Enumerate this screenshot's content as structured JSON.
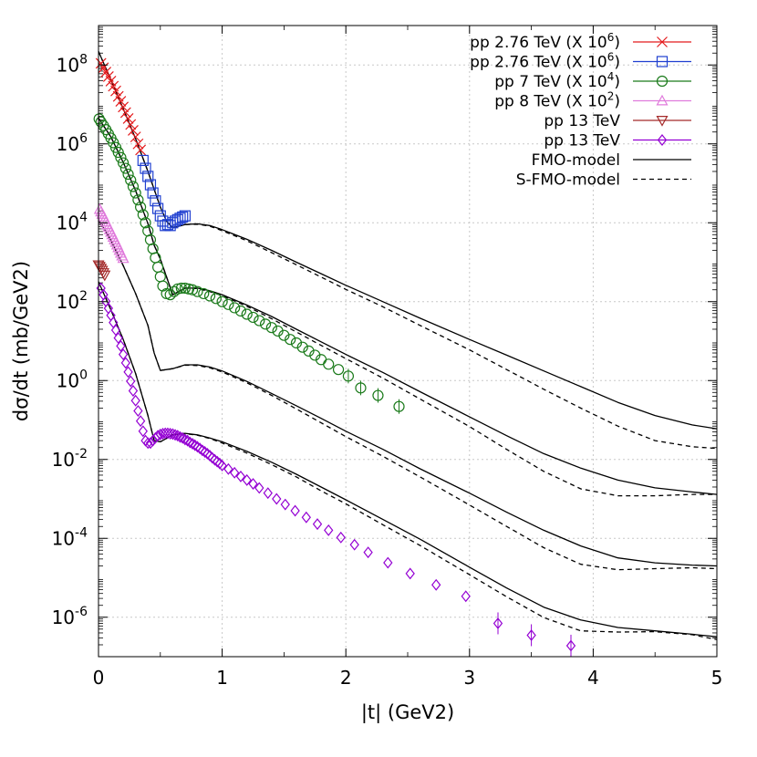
{
  "chart_data": {
    "type": "scatter",
    "xlabel": "|t| (GeV2)",
    "ylabel": "dσ/dt (mb/GeV2)",
    "x_scale": "linear",
    "y_scale": "log",
    "xlim": [
      0,
      5
    ],
    "ylim": [
      1e-07,
      1000000000.0
    ],
    "x_ticks": [
      "0",
      "1",
      "2",
      "3",
      "4",
      "5"
    ],
    "y_ticks": [
      {
        "base": "10",
        "exp": "8",
        "value": 100000000.0
      },
      {
        "base": "10",
        "exp": "6",
        "value": 1000000.0
      },
      {
        "base": "10",
        "exp": "4",
        "value": 10000.0
      },
      {
        "base": "10",
        "exp": "2",
        "value": 100.0
      },
      {
        "base": "10",
        "exp": "0",
        "value": 1
      },
      {
        "base": "10",
        "exp": "-2",
        "value": 0.01
      },
      {
        "base": "10",
        "exp": "-4",
        "value": 0.0001
      },
      {
        "base": "10",
        "exp": "-6",
        "value": 1e-06
      }
    ],
    "grid": true,
    "legend_position": "top-right",
    "series": [
      {
        "name": "pp 2.76 TeV (X 10⁶)",
        "marker": "x",
        "color": "#e41a1c",
        "line": "solid",
        "x": [
          0.02,
          0.04,
          0.06,
          0.08,
          0.1,
          0.12,
          0.14,
          0.16,
          0.18,
          0.2,
          0.22,
          0.24,
          0.26,
          0.28,
          0.3,
          0.32,
          0.34
        ],
        "y": [
          110000000.0,
          85000000.0,
          66000000.0,
          51000000.0,
          39000000.0,
          29000000.0,
          22000000.0,
          16000000.0,
          12000000.0,
          8600000.0,
          6200000.0,
          4400000.0,
          3100000.0,
          2200000.0,
          1500000.0,
          1000000.0,
          700000.0
        ]
      },
      {
        "name": "pp 2.76 TeV (X 10⁶)",
        "marker": "square",
        "color": "#1f3fd0",
        "line": "solid",
        "x": [
          0.36,
          0.38,
          0.4,
          0.42,
          0.44,
          0.46,
          0.48,
          0.5,
          0.52,
          0.54,
          0.56,
          0.58,
          0.6,
          0.62,
          0.64,
          0.66,
          0.68,
          0.7
        ],
        "y": [
          380000.0,
          240000.0,
          150000.0,
          92000.0,
          57000.0,
          36000.0,
          23000.0,
          15000.0,
          11000.0,
          8500.0,
          9000.0,
          8500.0,
          10000.0,
          11000.0,
          12000.0,
          13000.0,
          14000.0,
          15000.0
        ]
      },
      {
        "name": "pp 7 TeV (X 10⁴)",
        "marker": "circle",
        "color": "#1a7a1a",
        "line": "solid",
        "x": [
          0.005,
          0.02,
          0.04,
          0.06,
          0.08,
          0.1,
          0.12,
          0.14,
          0.16,
          0.18,
          0.2,
          0.22,
          0.24,
          0.26,
          0.28,
          0.3,
          0.32,
          0.34,
          0.36,
          0.38,
          0.4,
          0.42,
          0.44,
          0.46,
          0.48,
          0.5,
          0.52,
          0.55,
          0.58,
          0.61,
          0.64,
          0.67,
          0.7,
          0.73,
          0.76,
          0.8,
          0.85,
          0.9,
          0.95,
          1.0,
          1.05,
          1.1,
          1.15,
          1.2,
          1.25,
          1.3,
          1.35,
          1.4,
          1.45,
          1.5,
          1.55,
          1.6,
          1.65,
          1.7,
          1.75,
          1.8,
          1.86,
          1.94,
          2.02,
          2.12,
          2.26,
          2.43
        ],
        "y": [
          4300000.0,
          3600000.0,
          2900000.0,
          2300000.0,
          1800000.0,
          1400000.0,
          1070000.0,
          810000.0,
          610000.0,
          450000.0,
          330000.0,
          240000.0,
          170000.0,
          120000.0,
          83000.0,
          57000.0,
          38000.0,
          25000.0,
          16000.0,
          10000.0,
          6200.0,
          3700.0,
          2200.0,
          1300.0,
          750.0,
          430.0,
          250.0,
          160.0,
          150.0,
          180.0,
          210.0,
          220.0,
          220.0,
          210.0,
          200.0,
          180.0,
          160.0,
          140.0,
          120.0,
          100.0,
          85,
          70,
          58,
          48,
          40,
          33,
          27,
          22,
          18,
          14,
          11,
          9,
          7,
          5.6,
          4.4,
          3.4,
          2.6,
          1.9,
          1.3,
          0.65,
          0.42,
          0.22
        ]
      },
      {
        "name": "pp 8 TeV (X 10²)",
        "marker": "triangle-up",
        "color": "#e07bdc",
        "line": "solid",
        "x": [
          0.01,
          0.02,
          0.03,
          0.04,
          0.05,
          0.06,
          0.07,
          0.08,
          0.09,
          0.1,
          0.11,
          0.12,
          0.13,
          0.14,
          0.15,
          0.16,
          0.17,
          0.18,
          0.19,
          0.2
        ],
        "y": [
          22000.0,
          19000.0,
          16500.0,
          14200.0,
          12200.0,
          10500.0,
          9000.0,
          7800.0,
          6700.0,
          5800.0,
          5000.0,
          4300.0,
          3700.0,
          3200.0,
          2750.0,
          2350.0,
          2000.0,
          1700.0,
          1450.0,
          1250.0
        ]
      },
      {
        "name": "pp 13 TeV",
        "marker": "triangle-down",
        "color": "#a52a2a",
        "line": "solid",
        "x": [
          0.0,
          0.01,
          0.02,
          0.03,
          0.04,
          0.05
        ],
        "y": [
          850,
          780,
          700,
          620,
          540,
          470
        ]
      },
      {
        "name": "pp 13 TeV",
        "marker": "diamond",
        "color": "#9400d3",
        "line": "solid",
        "x": [
          0.02,
          0.04,
          0.06,
          0.08,
          0.1,
          0.12,
          0.14,
          0.16,
          0.18,
          0.2,
          0.22,
          0.24,
          0.26,
          0.28,
          0.3,
          0.32,
          0.34,
          0.36,
          0.38,
          0.4,
          0.42,
          0.44,
          0.46,
          0.48,
          0.5,
          0.52,
          0.54,
          0.56,
          0.58,
          0.6,
          0.62,
          0.64,
          0.66,
          0.68,
          0.7,
          0.72,
          0.74,
          0.76,
          0.78,
          0.8,
          0.82,
          0.84,
          0.86,
          0.88,
          0.9,
          0.92,
          0.94,
          0.96,
          0.98,
          1.0,
          1.05,
          1.1,
          1.15,
          1.2,
          1.25,
          1.3,
          1.37,
          1.44,
          1.51,
          1.59,
          1.68,
          1.77,
          1.86,
          1.96,
          2.07,
          2.18,
          2.34,
          2.52,
          2.73,
          2.97,
          3.23,
          3.5,
          3.82
        ],
        "y": [
          220,
          150,
          102,
          68,
          45,
          29.5,
          19,
          12,
          7.5,
          4.6,
          2.8,
          1.65,
          0.96,
          0.55,
          0.31,
          0.17,
          0.094,
          0.052,
          0.03,
          0.026,
          0.026,
          0.03,
          0.035,
          0.04,
          0.043,
          0.045,
          0.046,
          0.046,
          0.045,
          0.044,
          0.042,
          0.04,
          0.037,
          0.035,
          0.032,
          0.03,
          0.027,
          0.025,
          0.023,
          0.021,
          0.019,
          0.017,
          0.0155,
          0.014,
          0.0125,
          0.011,
          0.0098,
          0.0088,
          0.0079,
          0.007,
          0.0057,
          0.0046,
          0.0037,
          0.003,
          0.0024,
          0.0019,
          0.0014,
          0.001,
          0.00072,
          0.0005,
          0.00034,
          0.00023,
          0.00016,
          0.000105,
          6.9e-05,
          4.4e-05,
          2.4e-05,
          1.28e-05,
          6.6e-06,
          3.4e-06,
          7e-07,
          3.5e-07,
          1.9e-07
        ]
      }
    ],
    "model_curves": [
      {
        "name": "FMO-model",
        "line": "solid",
        "color": "#000000",
        "groups": [
          {
            "x": [
              0,
              0.1,
              0.2,
              0.3,
              0.4,
              0.5,
              0.55,
              0.6,
              0.7,
              0.8,
              0.9,
              1.0,
              1.2,
              1.4,
              1.6,
              1.8,
              2.0,
              2.3,
              2.6,
              3.0,
              3.3,
              3.6,
              3.9,
              4.2,
              4.5,
              4.8,
              5.0
            ],
            "y": [
              220000000.0,
              42000000.0,
              7800000.0,
              1350000.0,
              200000.0,
              25000.0,
              11000.0,
              7500.0,
              9000.0,
              9400.0,
              8500.0,
              6700.0,
              3800.0,
              2000.0,
              1000.0,
              510,
              260,
              100,
              38,
              11,
              4.4,
              1.75,
              0.7,
              0.28,
              0.13,
              0.075,
              0.06
            ]
          },
          {
            "x": [
              0,
              0.1,
              0.2,
              0.3,
              0.4,
              0.45,
              0.5,
              0.6,
              0.7,
              0.8,
              0.9,
              1.0,
              1.2,
              1.4,
              1.6,
              1.8,
              2.0,
              2.3,
              2.6,
              3.0,
              3.3,
              3.6,
              3.9,
              4.2,
              4.5,
              4.8,
              5.0
            ],
            "y": [
              4500000.0,
              1500000.0,
              340000.0,
              65000.0,
              9500.0,
              2700.0,
              1200.0,
              150.0,
              220.0,
              220.0,
              190.0,
              150.0,
              82,
              42,
              20,
              9.6,
              4.6,
              1.6,
              0.52,
              0.12,
              0.04,
              0.014,
              0.006,
              0.003,
              0.0019,
              0.0015,
              0.0013
            ]
          },
          {
            "x": [
              0,
              0.1,
              0.2,
              0.3,
              0.4,
              0.45,
              0.5,
              0.6,
              0.7,
              0.8,
              0.9,
              1.0,
              1.2,
              1.4,
              1.6,
              1.8,
              2.0,
              2.3,
              2.6,
              3.0,
              3.3,
              3.6,
              3.9,
              4.2,
              4.5,
              4.8,
              5.0
            ],
            "y": [
              12000.0,
              3600.0,
              820.0,
              160.0,
              25,
              5,
              1.8,
              2.0,
              2.5,
              2.5,
              2.2,
              1.75,
              0.95,
              0.47,
              0.23,
              0.11,
              0.052,
              0.018,
              0.0058,
              0.0014,
              0.00046,
              0.00016,
              6.4e-05,
              3.2e-05,
              2.4e-05,
              2.1e-05,
              2e-05
            ]
          },
          {
            "x": [
              0,
              0.1,
              0.2,
              0.3,
              0.4,
              0.45,
              0.5,
              0.6,
              0.7,
              0.8,
              0.9,
              1.0,
              1.2,
              1.4,
              1.6,
              1.8,
              2.0,
              2.3,
              2.6,
              3.0,
              3.3,
              3.6,
              3.9,
              4.2,
              4.5,
              4.8,
              5.0
            ],
            "y": [
              320,
              62,
              11,
              1.5,
              0.13,
              0.03,
              0.028,
              0.042,
              0.046,
              0.042,
              0.035,
              0.028,
              0.016,
              0.0085,
              0.0042,
              0.002,
              0.00095,
              0.0003,
              9.5e-05,
              1.85e-05,
              5.5e-06,
              1.8e-06,
              8.5e-07,
              5.5e-07,
              4.5e-07,
              3.7e-07,
              3.2e-07
            ]
          }
        ]
      },
      {
        "name": "S-FMO-model",
        "line": "dashed",
        "color": "#000000",
        "groups": [
          {
            "x": [
              0,
              0.1,
              0.2,
              0.3,
              0.4,
              0.5,
              0.55,
              0.6,
              0.7,
              0.8,
              0.9,
              1.0,
              1.2,
              1.4,
              1.6,
              1.8,
              2.0,
              2.3,
              2.6,
              3.0,
              3.3,
              3.6,
              3.9,
              4.2,
              4.5,
              4.8,
              5.0
            ],
            "y": [
              220000000.0,
              42000000.0,
              7800000.0,
              1350000.0,
              200000.0,
              25000.0,
              11000.0,
              7500.0,
              9000.0,
              9200.0,
              8200.0,
              6300.0,
              3500.0,
              1750.0,
              860,
              420,
              205,
              74,
              25,
              6.0,
              1.9,
              0.6,
              0.2,
              0.07,
              0.03,
              0.021,
              0.019
            ]
          },
          {
            "x": [
              0,
              0.1,
              0.2,
              0.3,
              0.4,
              0.45,
              0.5,
              0.6,
              0.7,
              0.8,
              0.9,
              1.0,
              1.2,
              1.4,
              1.6,
              1.8,
              2.0,
              2.3,
              2.6,
              3.0,
              3.3,
              3.6,
              3.9,
              4.2,
              4.5,
              4.8,
              5.0
            ],
            "y": [
              4500000.0,
              1500000.0,
              340000.0,
              65000.0,
              9500.0,
              2700.0,
              1200.0,
              150.0,
              220.0,
              215.0,
              180.0,
              142.0,
              76,
              37,
              17,
              7.8,
              3.6,
              1.15,
              0.34,
              0.068,
              0.018,
              0.005,
              0.0018,
              0.0012,
              0.0012,
              0.0013,
              0.0013
            ]
          },
          {
            "x": [
              0,
              0.1,
              0.2,
              0.3,
              0.4,
              0.45,
              0.5,
              0.6,
              0.7,
              0.8,
              0.9,
              1.0,
              1.2,
              1.4,
              1.6,
              1.8,
              2.0,
              2.3,
              2.6,
              3.0,
              3.3,
              3.6,
              3.9,
              4.2,
              4.5,
              4.8,
              5.0
            ],
            "y": [
              12000.0,
              3600.0,
              820.0,
              160.0,
              25,
              5,
              1.8,
              2.0,
              2.45,
              2.4,
              2.1,
              1.65,
              0.88,
              0.42,
              0.19,
              0.085,
              0.038,
              0.012,
              0.0036,
              0.0007,
              0.0002,
              5.8e-05,
              2.2e-05,
              1.6e-05,
              1.7e-05,
              1.8e-05,
              1.7e-05
            ]
          },
          {
            "x": [
              0,
              0.1,
              0.2,
              0.3,
              0.4,
              0.45,
              0.5,
              0.6,
              0.7,
              0.8,
              0.9,
              1.0,
              1.2,
              1.4,
              1.6,
              1.8,
              2.0,
              2.3,
              2.6,
              3.0,
              3.3,
              3.6,
              3.9,
              4.2,
              4.5,
              4.8,
              5.0
            ],
            "y": [
              320,
              62,
              11,
              1.5,
              0.13,
              0.03,
              0.028,
              0.042,
              0.045,
              0.041,
              0.034,
              0.026,
              0.0145,
              0.0074,
              0.0036,
              0.0016,
              0.00075,
              0.00022,
              6.6e-05,
              1.2e-05,
              3.3e-06,
              9.8e-07,
              4.5e-07,
              4.2e-07,
              4.3e-07,
              3.6e-07,
              2.7e-07
            ]
          }
        ]
      }
    ],
    "legend": [
      {
        "text": "pp 2.76 TeV (X 10",
        "sup": "6",
        "tail": ")",
        "marker": "x",
        "color": "#e41a1c",
        "line": "solid"
      },
      {
        "text": "pp 2.76 TeV (X 10",
        "sup": "6",
        "tail": ")",
        "marker": "square",
        "color": "#1f3fd0",
        "line": "solid"
      },
      {
        "text": "pp 7 TeV (X 10",
        "sup": "4",
        "tail": ")",
        "marker": "circle",
        "color": "#1a7a1a",
        "line": "solid"
      },
      {
        "text": "pp 8 TeV (X 10",
        "sup": "2",
        "tail": ")",
        "marker": "triangle-up",
        "color": "#e07bdc",
        "line": "solid"
      },
      {
        "text": "pp 13 TeV",
        "sup": "",
        "tail": "",
        "marker": "triangle-down",
        "color": "#a52a2a",
        "line": "solid"
      },
      {
        "text": "pp 13 TeV",
        "sup": "",
        "tail": "",
        "marker": "diamond",
        "color": "#9400d3",
        "line": "solid"
      },
      {
        "text": "FMO-model",
        "sup": "",
        "tail": "",
        "marker": "none",
        "color": "#000000",
        "line": "solid"
      },
      {
        "text": "S-FMO-model",
        "sup": "",
        "tail": "",
        "marker": "none",
        "color": "#000000",
        "line": "dashed"
      }
    ]
  }
}
